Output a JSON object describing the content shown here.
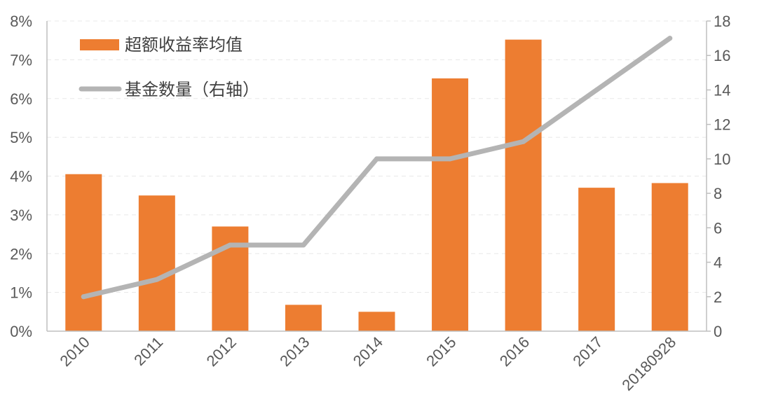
{
  "chart_data": {
    "type": "bar",
    "categories": [
      "2010",
      "2011",
      "2012",
      "2013",
      "2014",
      "2015",
      "2016",
      "2017",
      "20180928"
    ],
    "series": [
      {
        "name": "超额收益率均值",
        "type": "bar",
        "axis": "left",
        "unit": "%",
        "color": "#ED7D31",
        "values": [
          4.05,
          3.5,
          2.7,
          0.68,
          0.5,
          6.52,
          7.52,
          3.7,
          3.82
        ]
      },
      {
        "name": "基金数量（右轴）",
        "type": "line",
        "axis": "right",
        "color": "#B4B4B4",
        "values": [
          2,
          3,
          5,
          5,
          10,
          10,
          11,
          14,
          17
        ]
      }
    ],
    "y_left": {
      "ylim": [
        0,
        8
      ],
      "tick_labels": [
        "0%",
        "1%",
        "2%",
        "3%",
        "4%",
        "5%",
        "6%",
        "7%",
        "8%"
      ]
    },
    "y_right": {
      "ylim": [
        0,
        18
      ],
      "tick_labels": [
        "0",
        "2",
        "4",
        "6",
        "8",
        "10",
        "12",
        "14",
        "16",
        "18"
      ]
    },
    "grid": true,
    "legend_position": "top-left"
  }
}
